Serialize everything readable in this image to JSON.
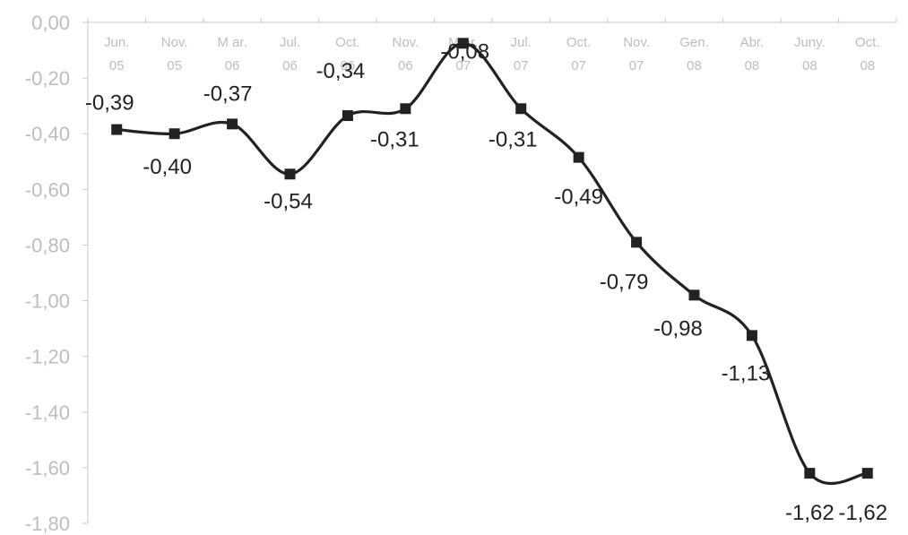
{
  "chart_data": {
    "type": "line",
    "title": "",
    "xlabel": "",
    "ylabel": "",
    "ylim": [
      -1.8,
      0.0
    ],
    "y_ticks": [
      "0,00",
      "-0,20",
      "-0,40",
      "-0,60",
      "-0,80",
      "-1,00",
      "-1,20",
      "-1,40",
      "-1,60",
      "-1,80"
    ],
    "x_axis_position": "top",
    "grid": false,
    "legend": "none",
    "categories": [
      [
        "Jun.",
        "05"
      ],
      [
        "Nov.",
        "05"
      ],
      [
        "M ar.",
        "06"
      ],
      [
        "Jul.",
        "06"
      ],
      [
        "Oct.",
        "06"
      ],
      [
        "Nov.",
        "06"
      ],
      [
        "M ar.",
        "07"
      ],
      [
        "Jul.",
        "07"
      ],
      [
        "Oct.",
        "07"
      ],
      [
        "Nov.",
        "07"
      ],
      [
        "Gen.",
        "08"
      ],
      [
        "Abr.",
        "08"
      ],
      [
        "Juny.",
        "08"
      ],
      [
        "Oct.",
        "08"
      ]
    ],
    "series": [
      {
        "values": [
          -0.385,
          -0.4,
          -0.365,
          -0.545,
          -0.335,
          -0.31,
          -0.075,
          -0.31,
          -0.485,
          -0.79,
          -0.98,
          -1.125,
          -1.62,
          -1.62
        ],
        "labels": [
          "-0,39",
          "-0,40",
          "-0,37",
          "-0,54",
          "-0,34",
          "-0,31",
          "-0,08",
          "-0,31",
          "-0,49",
          "-0,79",
          "-0,98",
          "-1,13",
          "-1,62",
          "-1,62"
        ],
        "color": "#222222",
        "marker": "square",
        "smooth": true
      }
    ]
  }
}
